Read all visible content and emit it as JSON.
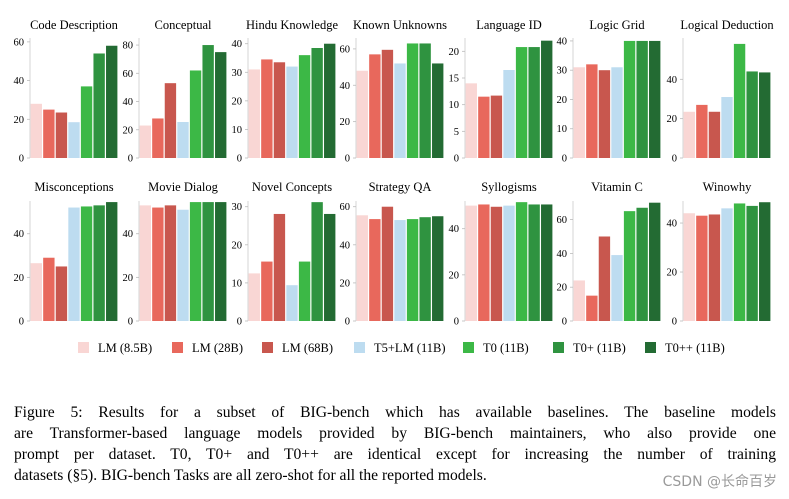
{
  "chart_data": [
    {
      "type": "bar",
      "title": "Code Description",
      "values": [
        28,
        25,
        23.5,
        18.5,
        37,
        54,
        58
      ],
      "ylim": [
        0,
        62
      ],
      "yticks": [
        0,
        20,
        40,
        60
      ]
    },
    {
      "type": "bar",
      "title": "Conceptual",
      "values": [
        23,
        28,
        53,
        25.5,
        62,
        80,
        75
      ],
      "ylim": [
        0,
        85
      ],
      "yticks": [
        0,
        20,
        40,
        60,
        80
      ]
    },
    {
      "type": "bar",
      "title": "Hindu Knowledge",
      "values": [
        31,
        34.5,
        33.5,
        32,
        36,
        38.5,
        40
      ],
      "ylim": [
        0,
        42
      ],
      "yticks": [
        0,
        10,
        20,
        30,
        40
      ]
    },
    {
      "type": "bar",
      "title": "Known Unknowns",
      "values": [
        48,
        57,
        59.5,
        52,
        63,
        63,
        52
      ],
      "ylim": [
        0,
        66
      ],
      "yticks": [
        0,
        20,
        40,
        60
      ]
    },
    {
      "type": "bar",
      "title": "Language ID",
      "values": [
        14,
        11.5,
        11.7,
        16.5,
        20.8,
        20.8,
        22
      ],
      "ylim": [
        0,
        22.5
      ],
      "yticks": [
        0,
        5,
        10,
        15,
        20
      ]
    },
    {
      "type": "bar",
      "title": "Logic Grid",
      "values": [
        31,
        32,
        30,
        31,
        40,
        40,
        40
      ],
      "ylim": [
        0,
        41
      ],
      "yticks": [
        0,
        10,
        20,
        30,
        40
      ]
    },
    {
      "type": "bar",
      "title": "Logical Deduction",
      "values": [
        23.5,
        27,
        23.5,
        31,
        58,
        44,
        43.5
      ],
      "ylim": [
        0,
        61
      ],
      "yticks": [
        0,
        20,
        40
      ]
    },
    {
      "type": "bar",
      "title": "Misconceptions",
      "values": [
        26.5,
        29,
        25,
        52,
        52.5,
        53,
        54.5
      ],
      "ylim": [
        0,
        55
      ],
      "yticks": [
        0,
        20,
        40
      ]
    },
    {
      "type": "bar",
      "title": "Movie Dialog",
      "values": [
        53,
        52,
        53,
        51,
        54.5,
        54.5,
        54.5
      ],
      "ylim": [
        0,
        55
      ],
      "yticks": [
        0,
        20,
        40
      ]
    },
    {
      "type": "bar",
      "title": "Novel Concepts",
      "values": [
        12.5,
        15.6,
        28.1,
        9.4,
        15.6,
        31.2,
        28.1
      ],
      "ylim": [
        0,
        31.5
      ],
      "yticks": [
        0,
        10,
        20,
        30
      ]
    },
    {
      "type": "bar",
      "title": "Strategy QA",
      "values": [
        55.5,
        53.5,
        60,
        53,
        53.5,
        54.5,
        55
      ],
      "ylim": [
        0,
        63
      ],
      "yticks": [
        0,
        20,
        40,
        60
      ]
    },
    {
      "type": "bar",
      "title": "Syllogisms",
      "values": [
        50,
        50.5,
        49.5,
        50,
        51.5,
        50.5,
        50.5
      ],
      "ylim": [
        0,
        52
      ],
      "yticks": [
        0,
        20,
        40
      ]
    },
    {
      "type": "bar",
      "title": "Vitamin C",
      "values": [
        24,
        15,
        50,
        39,
        65,
        67,
        70
      ],
      "ylim": [
        0,
        71
      ],
      "yticks": [
        0,
        20,
        40,
        60
      ]
    },
    {
      "type": "bar",
      "title": "Winowhy",
      "values": [
        44,
        43,
        43.5,
        46,
        48,
        47,
        48.5
      ],
      "ylim": [
        0,
        49
      ],
      "yticks": [
        0,
        20,
        40
      ]
    }
  ],
  "legend": {
    "series": [
      {
        "name": "LM (8.5B)",
        "color": "#f9d6d4"
      },
      {
        "name": "LM (28B)",
        "color": "#e8685c"
      },
      {
        "name": "LM (68B)",
        "color": "#c8574e"
      },
      {
        "name": "T5+LM (11B)",
        "color": "#bddcf0"
      },
      {
        "name": "T0 (11B)",
        "color": "#3cb846"
      },
      {
        "name": "T0+ (11B)",
        "color": "#2f9340"
      },
      {
        "name": "T0++ (11B)",
        "color": "#236b33"
      }
    ]
  },
  "caption": [
    "Figure 5: Results for a subset of BIG-bench which has available baselines. The baseline models",
    "are Transformer-based language models provided by BIG-bench maintainers, who also provide one",
    "prompt per dataset. T0, T0+ and T0++ are identical except for increasing the number of training",
    "datasets (§5). BIG-bench Tasks are all zero-shot for all the reported models."
  ],
  "watermark": "CSDN @长命百岁"
}
